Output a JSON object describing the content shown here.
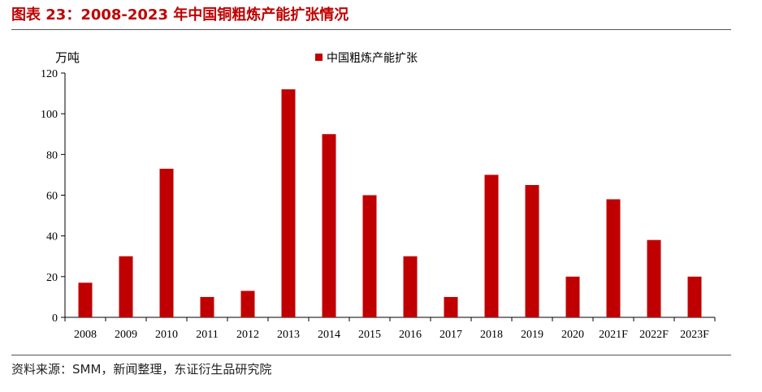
{
  "header": {
    "title": "图表 23：2008-2023 年中国铜粗炼产能扩张情况"
  },
  "footer": {
    "source": "资料来源：SMM，新闻整理，东证衍生品研究院"
  },
  "colors": {
    "bar": "#c00000",
    "title": "#c00000"
  },
  "chart_data": {
    "type": "bar",
    "title": "",
    "xlabel": "",
    "ylabel": "万吨",
    "ylim": [
      0,
      120
    ],
    "yticks": [
      0,
      20,
      40,
      60,
      80,
      100,
      120
    ],
    "legend_position": "top-center",
    "grid": false,
    "categories": [
      "2008",
      "2009",
      "2010",
      "2011",
      "2012",
      "2013",
      "2014",
      "2015",
      "2016",
      "2017",
      "2018",
      "2019",
      "2020",
      "2021F",
      "2022F",
      "2023F"
    ],
    "series": [
      {
        "name": "中国粗炼产能扩张",
        "values": [
          17,
          30,
          73,
          10,
          13,
          112,
          90,
          60,
          30,
          10,
          70,
          65,
          20,
          58,
          38,
          20
        ]
      }
    ]
  }
}
